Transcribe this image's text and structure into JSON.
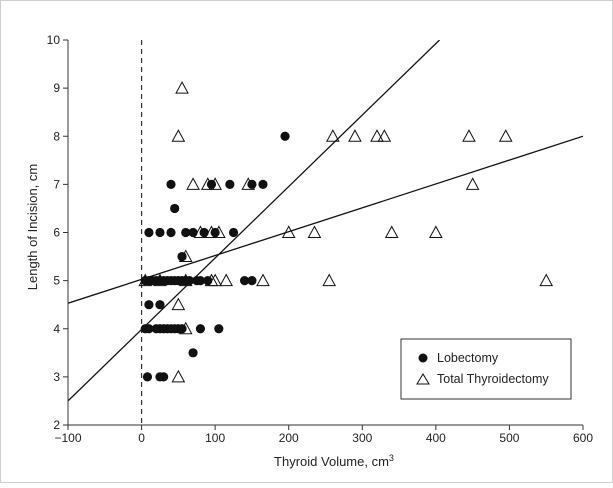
{
  "chart_data": {
    "type": "scatter",
    "title": "",
    "xlabel": "Thyroid Volume, cm",
    "xlabel_superscript": "3",
    "ylabel": "Length of Incision, cm",
    "xlim": [
      -100,
      600
    ],
    "ylim": [
      2,
      10
    ],
    "xticks": [
      -100,
      0,
      100,
      200,
      300,
      400,
      500,
      600
    ],
    "xtick_labels": [
      "−100",
      "0",
      "100",
      "200",
      "300",
      "400",
      "500",
      "600"
    ],
    "yticks": [
      2,
      3,
      4,
      5,
      6,
      7,
      8,
      9,
      10
    ],
    "ytick_labels": [
      "2",
      "3",
      "4",
      "5",
      "6",
      "7",
      "8",
      "9",
      "10"
    ],
    "grid": false,
    "legend_position": "bottom-right",
    "reference_line": {
      "x": 0,
      "style": "dashed"
    },
    "series": [
      {
        "name": "Lobectomy",
        "marker": "filled-circle",
        "color": "#111111",
        "points": [
          [
            8,
            3
          ],
          [
            25,
            3
          ],
          [
            30,
            3
          ],
          [
            70,
            3.5
          ],
          [
            5,
            4
          ],
          [
            10,
            4
          ],
          [
            20,
            4
          ],
          [
            25,
            4
          ],
          [
            30,
            4
          ],
          [
            35,
            4
          ],
          [
            40,
            4
          ],
          [
            45,
            4
          ],
          [
            50,
            4
          ],
          [
            55,
            4
          ],
          [
            80,
            4
          ],
          [
            105,
            4
          ],
          [
            10,
            4.5
          ],
          [
            25,
            4.5
          ],
          [
            5,
            5
          ],
          [
            10,
            5
          ],
          [
            15,
            5
          ],
          [
            20,
            5
          ],
          [
            25,
            5
          ],
          [
            30,
            5
          ],
          [
            35,
            5
          ],
          [
            40,
            5
          ],
          [
            45,
            5
          ],
          [
            50,
            5
          ],
          [
            55,
            5
          ],
          [
            60,
            5
          ],
          [
            65,
            5
          ],
          [
            75,
            5
          ],
          [
            80,
            5
          ],
          [
            90,
            5
          ],
          [
            140,
            5
          ],
          [
            150,
            5
          ],
          [
            55,
            5.5
          ],
          [
            10,
            6
          ],
          [
            25,
            6
          ],
          [
            40,
            6
          ],
          [
            60,
            6
          ],
          [
            70,
            6
          ],
          [
            85,
            6
          ],
          [
            100,
            6
          ],
          [
            125,
            6
          ],
          [
            45,
            6.5
          ],
          [
            40,
            7
          ],
          [
            95,
            7
          ],
          [
            120,
            7
          ],
          [
            150,
            7
          ],
          [
            165,
            7
          ],
          [
            195,
            8
          ]
        ]
      },
      {
        "name": "Total Thyroidectomy",
        "marker": "open-triangle",
        "color": "#111111",
        "points": [
          [
            50,
            3
          ],
          [
            60,
            4
          ],
          [
            50,
            4.5
          ],
          [
            5,
            5
          ],
          [
            25,
            5
          ],
          [
            60,
            5
          ],
          [
            95,
            5
          ],
          [
            100,
            5
          ],
          [
            115,
            5
          ],
          [
            165,
            5
          ],
          [
            255,
            5
          ],
          [
            550,
            5
          ],
          [
            60,
            5.5
          ],
          [
            80,
            6
          ],
          [
            95,
            6
          ],
          [
            105,
            6
          ],
          [
            200,
            6
          ],
          [
            235,
            6
          ],
          [
            340,
            6
          ],
          [
            400,
            6
          ],
          [
            70,
            7
          ],
          [
            90,
            7
          ],
          [
            100,
            7
          ],
          [
            145,
            7
          ],
          [
            450,
            7
          ],
          [
            50,
            8
          ],
          [
            260,
            8
          ],
          [
            290,
            8
          ],
          [
            320,
            8
          ],
          [
            330,
            8
          ],
          [
            445,
            8
          ],
          [
            495,
            8
          ],
          [
            55,
            9
          ]
        ]
      }
    ],
    "fit_lines": [
      {
        "series": "Lobectomy",
        "points": [
          [
            -100,
            2.5
          ],
          [
            405,
            10
          ]
        ]
      },
      {
        "series": "Total Thyroidectomy",
        "points": [
          [
            -100,
            4.53
          ],
          [
            600,
            8.0
          ]
        ]
      }
    ]
  }
}
